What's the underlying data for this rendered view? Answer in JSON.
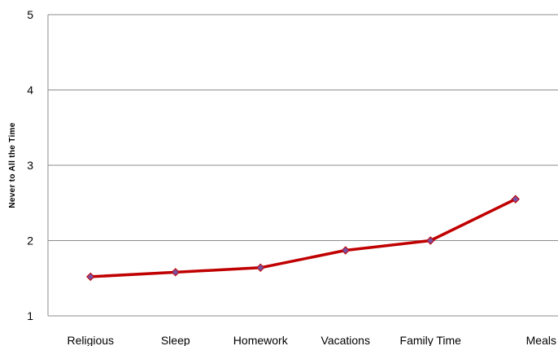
{
  "chart_data": {
    "type": "line",
    "title": "",
    "xlabel": "",
    "ylabel": "Never  to  All  the  Time",
    "categories": [
      "Religious",
      "Sleep",
      "Homework",
      "Vacations",
      "Family Time",
      "Meals"
    ],
    "series": [
      {
        "values": [
          1.52,
          1.58,
          1.64,
          1.87,
          2.0,
          2.55
        ],
        "line_color": "#c00000",
        "marker": "diamond",
        "marker_color": "#7b4fa0"
      }
    ],
    "ylim": [
      1,
      5
    ],
    "yticks": [
      "1",
      "2",
      "3",
      "4",
      "5"
    ],
    "grid": true,
    "legend": "none"
  }
}
